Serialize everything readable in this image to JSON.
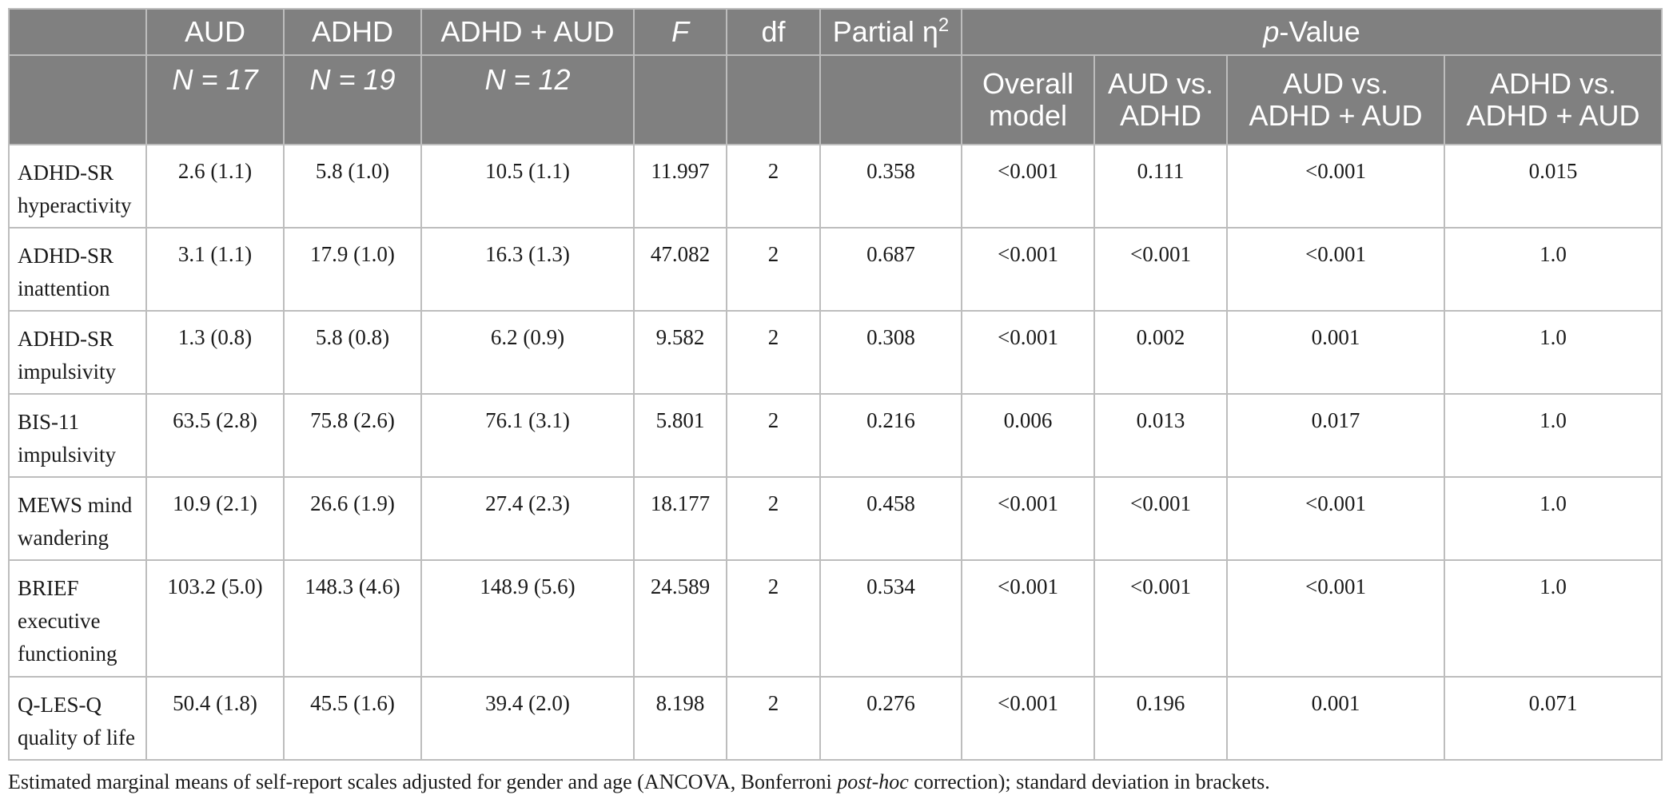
{
  "header": {
    "groups": [
      {
        "text": "AUD",
        "n": "N = 17"
      },
      {
        "text": "ADHD",
        "n": "N = 19"
      },
      {
        "text": "ADHD + AUD",
        "n": "N = 12"
      }
    ],
    "f": "F",
    "df": "df",
    "partial_eta_prefix": "Partial η",
    "partial_eta_sup": "2",
    "pvalue_italic": "p",
    "pvalue_rest": "-Value",
    "pvalue_subcols": [
      [
        "Overall",
        "model"
      ],
      [
        "AUD vs.",
        "ADHD"
      ],
      [
        "AUD vs.",
        "ADHD + AUD"
      ],
      [
        "ADHD vs.",
        "ADHD + AUD"
      ]
    ]
  },
  "rows": [
    {
      "label": [
        "ADHD-SR",
        "hyperactivity"
      ],
      "aud": "2.6 (1.1)",
      "adhd": "5.8 (1.0)",
      "adhd_aud": "10.5 (1.1)",
      "f": "11.997",
      "df": "2",
      "eta": "0.358",
      "p_overall": "<0.001",
      "p_aud_adhd": "0.111",
      "p_aud_adhdaud": "<0.001",
      "p_adhd_adhdaud": "0.015"
    },
    {
      "label": [
        "ADHD-SR",
        "inattention"
      ],
      "aud": "3.1 (1.1)",
      "adhd": "17.9 (1.0)",
      "adhd_aud": "16.3 (1.3)",
      "f": "47.082",
      "df": "2",
      "eta": "0.687",
      "p_overall": "<0.001",
      "p_aud_adhd": "<0.001",
      "p_aud_adhdaud": "<0.001",
      "p_adhd_adhdaud": "1.0"
    },
    {
      "label": [
        "ADHD-SR",
        "impulsivity"
      ],
      "aud": "1.3 (0.8)",
      "adhd": "5.8 (0.8)",
      "adhd_aud": "6.2 (0.9)",
      "f": "9.582",
      "df": "2",
      "eta": "0.308",
      "p_overall": "<0.001",
      "p_aud_adhd": "0.002",
      "p_aud_adhdaud": "0.001",
      "p_adhd_adhdaud": "1.0"
    },
    {
      "label": [
        "BIS-11",
        "impulsivity"
      ],
      "aud": "63.5 (2.8)",
      "adhd": "75.8 (2.6)",
      "adhd_aud": "76.1 (3.1)",
      "f": "5.801",
      "df": "2",
      "eta": "0.216",
      "p_overall": "0.006",
      "p_aud_adhd": "0.013",
      "p_aud_adhdaud": "0.017",
      "p_adhd_adhdaud": "1.0"
    },
    {
      "label": [
        "MEWS mind",
        "wandering"
      ],
      "aud": "10.9 (2.1)",
      "adhd": "26.6 (1.9)",
      "adhd_aud": "27.4 (2.3)",
      "f": "18.177",
      "df": "2",
      "eta": "0.458",
      "p_overall": "<0.001",
      "p_aud_adhd": "<0.001",
      "p_aud_adhdaud": "<0.001",
      "p_adhd_adhdaud": "1.0"
    },
    {
      "label": [
        "BRIEF",
        "executive",
        "functioning"
      ],
      "aud": "103.2 (5.0)",
      "adhd": "148.3 (4.6)",
      "adhd_aud": "148.9 (5.6)",
      "f": "24.589",
      "df": "2",
      "eta": "0.534",
      "p_overall": "<0.001",
      "p_aud_adhd": "<0.001",
      "p_aud_adhdaud": "<0.001",
      "p_adhd_adhdaud": "1.0"
    },
    {
      "label": [
        "Q-LES-Q",
        "quality of life"
      ],
      "aud": "50.4 (1.8)",
      "adhd": "45.5 (1.6)",
      "adhd_aud": "39.4 (2.0)",
      "f": "8.198",
      "df": "2",
      "eta": "0.276",
      "p_overall": "<0.001",
      "p_aud_adhd": "0.196",
      "p_aud_adhdaud": "0.001",
      "p_adhd_adhdaud": "0.071"
    }
  ],
  "note": {
    "before": "Estimated marginal means of self-report scales adjusted for gender and age (ANCOVA, Bonferroni ",
    "italic": "post-hoc",
    "after": " correction); standard deviation in brackets."
  },
  "colors": {
    "header_bg": "#808080",
    "header_text": "#ffffff",
    "border": "#bdbdbd"
  }
}
